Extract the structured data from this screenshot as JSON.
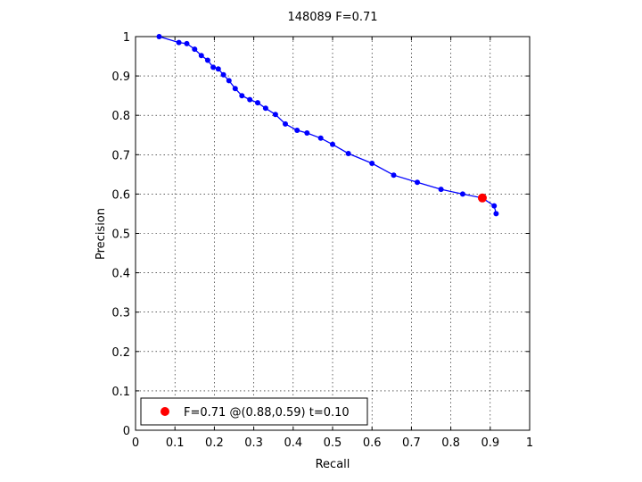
{
  "chart_data": {
    "type": "line",
    "title": "148089 F=0.71",
    "xlabel": "Recall",
    "ylabel": "Precision",
    "xlim": [
      0,
      1
    ],
    "ylim": [
      0,
      1
    ],
    "xticks": [
      "0",
      "0.1",
      "0.2",
      "0.3",
      "0.4",
      "0.5",
      "0.6",
      "0.7",
      "0.8",
      "0.9",
      "1"
    ],
    "yticks": [
      "0",
      "0.1",
      "0.2",
      "0.3",
      "0.4",
      "0.5",
      "0.6",
      "0.7",
      "0.8",
      "0.9",
      "1"
    ],
    "grid": true,
    "legend_position": "bottom-left",
    "series": [
      {
        "color": "#0000ff",
        "x": [
          0.06,
          0.11,
          0.13,
          0.15,
          0.167,
          0.183,
          0.197,
          0.21,
          0.223,
          0.237,
          0.253,
          0.27,
          0.29,
          0.31,
          0.33,
          0.355,
          0.38,
          0.41,
          0.435,
          0.47,
          0.5,
          0.54,
          0.6,
          0.655,
          0.715,
          0.775,
          0.83,
          0.88,
          0.91,
          0.915
        ],
        "y": [
          1.0,
          0.985,
          0.982,
          0.968,
          0.952,
          0.94,
          0.922,
          0.918,
          0.903,
          0.888,
          0.868,
          0.85,
          0.84,
          0.832,
          0.818,
          0.802,
          0.778,
          0.762,
          0.755,
          0.742,
          0.726,
          0.703,
          0.678,
          0.648,
          0.63,
          0.612,
          0.6,
          0.59,
          0.57,
          0.55
        ]
      }
    ],
    "best_point": {
      "x": 0.88,
      "y": 0.59,
      "color": "#ff0000"
    },
    "legend": {
      "label": "F=0.71 @(0.88,0.59) t=0.10"
    }
  }
}
